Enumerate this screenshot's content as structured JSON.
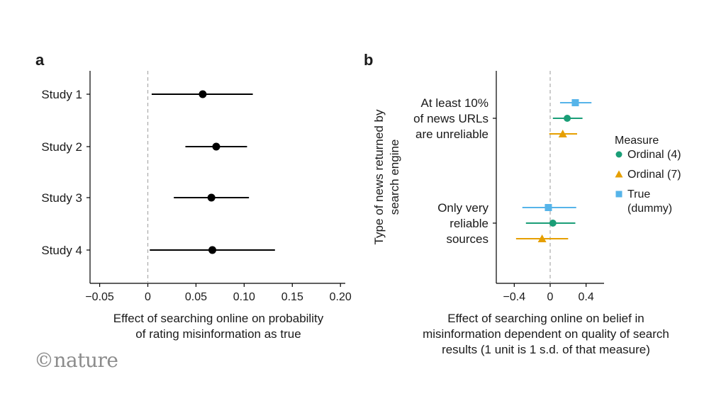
{
  "panels": {
    "a": {
      "letter": "a"
    },
    "b": {
      "letter": "b"
    }
  },
  "logo": {
    "text": "©nature"
  },
  "chart_data": [
    {
      "type": "scatter",
      "panel": "a",
      "categories": [
        "Study 1",
        "Study 2",
        "Study 3",
        "Study 4"
      ],
      "values": [
        0.057,
        0.071,
        0.066,
        0.067
      ],
      "ci_low": [
        0.004,
        0.039,
        0.027,
        0.002
      ],
      "ci_high": [
        0.109,
        0.103,
        0.105,
        0.132
      ],
      "xlabel_lines": [
        "Effect of searching online on probability",
        "of rating misinformation as true"
      ],
      "xlim": [
        -0.06,
        0.205
      ],
      "xticks": [
        -0.05,
        0,
        0.05,
        0.1,
        0.15,
        0.2
      ],
      "xtick_labels": [
        "−0.05",
        "0",
        "0.05",
        "0.10",
        "0.15",
        "0.20"
      ],
      "reference_line": 0,
      "point_color": "#000000"
    },
    {
      "type": "scatter",
      "panel": "b",
      "groups": [
        {
          "label_lines": [
            "At least 10%",
            "of news URLs",
            "are unreliable"
          ]
        },
        {
          "label_lines": [
            "Only very",
            "reliable",
            "sources"
          ]
        }
      ],
      "ylabel_lines": [
        "Type of news returned by",
        "search engine"
      ],
      "xlabel_lines": [
        "Effect of searching online on belief in",
        "misinformation dependent on quality of search",
        "results (1 unit is 1 s.d. of that measure)"
      ],
      "xlim": [
        -0.6,
        0.6
      ],
      "xticks": [
        -0.4,
        0,
        0.4
      ],
      "xtick_labels": [
        "−0.4",
        "0",
        "0.4"
      ],
      "reference_line": 0,
      "legend_title": "Measure",
      "legend_position": "right",
      "series": [
        {
          "name": "Ordinal (4)",
          "label_lines": [
            "Ordinal (4)"
          ],
          "color": "#1a9e77",
          "marker": "circle",
          "values": [
            0.19,
            0.03
          ],
          "ci_low": [
            0.03,
            -0.27
          ],
          "ci_high": [
            0.36,
            0.28
          ]
        },
        {
          "name": "Ordinal (7)",
          "label_lines": [
            "Ordinal (7)"
          ],
          "color": "#e69f00",
          "marker": "triangle",
          "values": [
            0.14,
            -0.09
          ],
          "ci_low": [
            -0.01,
            -0.38
          ],
          "ci_high": [
            0.3,
            0.2
          ]
        },
        {
          "name": "True (dummy)",
          "label_lines": [
            "True",
            "(dummy)"
          ],
          "color": "#56b4e9",
          "marker": "square",
          "values": [
            0.28,
            -0.02
          ],
          "ci_low": [
            0.11,
            -0.31
          ],
          "ci_high": [
            0.46,
            0.29
          ]
        }
      ]
    }
  ]
}
